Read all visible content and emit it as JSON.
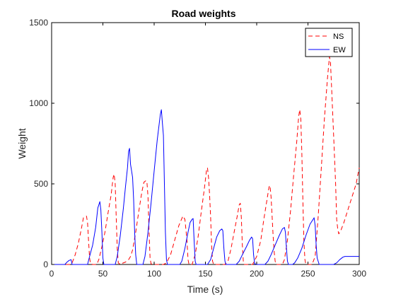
{
  "chart_data": {
    "type": "line",
    "title": "Road weights",
    "xlabel": "Time (s)",
    "ylabel": "Weight",
    "xlim": [
      0,
      300
    ],
    "ylim": [
      0,
      1500
    ],
    "xticks": [
      0,
      50,
      100,
      150,
      200,
      250,
      300
    ],
    "yticks": [
      0,
      500,
      1000,
      1500
    ],
    "grid": false,
    "legend": "top-right",
    "series": [
      {
        "name": "NS",
        "color": "#ff0000",
        "dash": "dashed",
        "points": [
          [
            0,
            0
          ],
          [
            18,
            0
          ],
          [
            20,
            10
          ],
          [
            23,
            60
          ],
          [
            26,
            130
          ],
          [
            29,
            220
          ],
          [
            31,
            290
          ],
          [
            34,
            300
          ],
          [
            35,
            260
          ],
          [
            36,
            150
          ],
          [
            37,
            40
          ],
          [
            38,
            5
          ],
          [
            40,
            0
          ],
          [
            44,
            0
          ],
          [
            46,
            30
          ],
          [
            49,
            110
          ],
          [
            52,
            200
          ],
          [
            55,
            320
          ],
          [
            58,
            430
          ],
          [
            60,
            540
          ],
          [
            61,
            560
          ],
          [
            62,
            500
          ],
          [
            63,
            300
          ],
          [
            64,
            100
          ],
          [
            65,
            10
          ],
          [
            67,
            0
          ],
          [
            68,
            5
          ],
          [
            72,
            15
          ],
          [
            75,
            30
          ],
          [
            77,
            50
          ],
          [
            79,
            90
          ],
          [
            82,
            200
          ],
          [
            85,
            330
          ],
          [
            88,
            450
          ],
          [
            90,
            510
          ],
          [
            92,
            520
          ],
          [
            93,
            510
          ],
          [
            94,
            420
          ],
          [
            95,
            200
          ],
          [
            96,
            40
          ],
          [
            97,
            5
          ],
          [
            98,
            0
          ],
          [
            109,
            0
          ],
          [
            112,
            10
          ],
          [
            116,
            60
          ],
          [
            120,
            150
          ],
          [
            124,
            240
          ],
          [
            128,
            300
          ],
          [
            130,
            280
          ],
          [
            132,
            150
          ],
          [
            133,
            30
          ],
          [
            134,
            0
          ],
          [
            137,
            0
          ],
          [
            140,
            60
          ],
          [
            143,
            180
          ],
          [
            146,
            330
          ],
          [
            149,
            470
          ],
          [
            151,
            580
          ],
          [
            152,
            600
          ],
          [
            153,
            540
          ],
          [
            154,
            440
          ],
          [
            155,
            300
          ],
          [
            156,
            120
          ],
          [
            157,
            20
          ],
          [
            158,
            0
          ],
          [
            169,
            0
          ],
          [
            172,
            20
          ],
          [
            175,
            100
          ],
          [
            178,
            200
          ],
          [
            181,
            300
          ],
          [
            183,
            370
          ],
          [
            184,
            380
          ],
          [
            185,
            290
          ],
          [
            186,
            120
          ],
          [
            187,
            20
          ],
          [
            188,
            0
          ],
          [
            196,
            0
          ],
          [
            200,
            50
          ],
          [
            204,
            150
          ],
          [
            207,
            280
          ],
          [
            210,
            400
          ],
          [
            212,
            480
          ],
          [
            213,
            490
          ],
          [
            214,
            420
          ],
          [
            215,
            300
          ],
          [
            216,
            180
          ],
          [
            217,
            80
          ],
          [
            218,
            20
          ],
          [
            219,
            0
          ],
          [
            225,
            0
          ],
          [
            227,
            30
          ],
          [
            230,
            150
          ],
          [
            233,
            330
          ],
          [
            236,
            550
          ],
          [
            239,
            760
          ],
          [
            241,
            920
          ],
          [
            242,
            960
          ],
          [
            243,
            900
          ],
          [
            244,
            700
          ],
          [
            245,
            400
          ],
          [
            246,
            150
          ],
          [
            247,
            30
          ],
          [
            248,
            0
          ],
          [
            254,
            0
          ],
          [
            257,
            50
          ],
          [
            260,
            300
          ],
          [
            263,
            600
          ],
          [
            266,
            900
          ],
          [
            269,
            1150
          ],
          [
            271,
            1290
          ],
          [
            272,
            1250
          ],
          [
            273,
            1100
          ],
          [
            275,
            800
          ],
          [
            277,
            500
          ],
          [
            278,
            280
          ],
          [
            279,
            220
          ],
          [
            280,
            190
          ],
          [
            282,
            210
          ],
          [
            285,
            260
          ],
          [
            288,
            320
          ],
          [
            291,
            380
          ],
          [
            294,
            440
          ],
          [
            297,
            500
          ],
          [
            300,
            600
          ]
        ]
      },
      {
        "name": "EW",
        "color": "#0000ff",
        "dash": "solid",
        "points": [
          [
            0,
            0
          ],
          [
            13,
            0
          ],
          [
            15,
            15
          ],
          [
            17,
            25
          ],
          [
            19,
            30
          ],
          [
            20,
            0
          ],
          [
            35,
            0
          ],
          [
            37,
            50
          ],
          [
            40,
            120
          ],
          [
            43,
            230
          ],
          [
            45,
            350
          ],
          [
            47,
            390
          ],
          [
            48,
            340
          ],
          [
            49,
            200
          ],
          [
            50,
            40
          ],
          [
            51,
            0
          ],
          [
            62,
            0
          ],
          [
            64,
            50
          ],
          [
            67,
            180
          ],
          [
            70,
            350
          ],
          [
            72,
            480
          ],
          [
            74,
            600
          ],
          [
            75,
            700
          ],
          [
            76,
            720
          ],
          [
            77,
            620
          ],
          [
            78,
            580
          ],
          [
            79,
            540
          ],
          [
            80,
            400
          ],
          [
            81,
            200
          ],
          [
            82,
            60
          ],
          [
            83,
            0
          ],
          [
            89,
            0
          ],
          [
            91,
            50
          ],
          [
            94,
            200
          ],
          [
            97,
            380
          ],
          [
            100,
            580
          ],
          [
            103,
            770
          ],
          [
            106,
            930
          ],
          [
            107,
            960
          ],
          [
            108,
            880
          ],
          [
            109,
            800
          ],
          [
            110,
            500
          ],
          [
            111,
            200
          ],
          [
            112,
            30
          ],
          [
            113,
            0
          ],
          [
            125,
            0
          ],
          [
            127,
            20
          ],
          [
            130,
            100
          ],
          [
            133,
            200
          ],
          [
            135,
            260
          ],
          [
            137,
            280
          ],
          [
            138,
            285
          ],
          [
            139,
            150
          ],
          [
            140,
            20
          ],
          [
            141,
            0
          ],
          [
            152,
            0
          ],
          [
            155,
            30
          ],
          [
            158,
            100
          ],
          [
            161,
            170
          ],
          [
            164,
            210
          ],
          [
            166,
            220
          ],
          [
            167,
            210
          ],
          [
            168,
            100
          ],
          [
            169,
            20
          ],
          [
            170,
            0
          ],
          [
            180,
            0
          ],
          [
            183,
            20
          ],
          [
            186,
            60
          ],
          [
            190,
            110
          ],
          [
            193,
            150
          ],
          [
            195,
            170
          ],
          [
            196,
            160
          ],
          [
            197,
            60
          ],
          [
            198,
            5
          ],
          [
            200,
            0
          ],
          [
            208,
            0
          ],
          [
            211,
            20
          ],
          [
            214,
            60
          ],
          [
            218,
            120
          ],
          [
            222,
            180
          ],
          [
            225,
            220
          ],
          [
            227,
            230
          ],
          [
            228,
            200
          ],
          [
            229,
            100
          ],
          [
            230,
            20
          ],
          [
            231,
            0
          ],
          [
            235,
            0
          ],
          [
            237,
            10
          ],
          [
            240,
            40
          ],
          [
            244,
            100
          ],
          [
            248,
            180
          ],
          [
            252,
            250
          ],
          [
            255,
            280
          ],
          [
            256,
            290
          ],
          [
            257,
            240
          ],
          [
            258,
            120
          ],
          [
            259,
            40
          ],
          [
            261,
            0
          ],
          [
            262,
            0
          ],
          [
            275,
            0
          ],
          [
            278,
            10
          ],
          [
            281,
            30
          ],
          [
            284,
            45
          ],
          [
            286,
            50
          ],
          [
            289,
            50
          ],
          [
            300,
            50
          ]
        ]
      }
    ]
  }
}
